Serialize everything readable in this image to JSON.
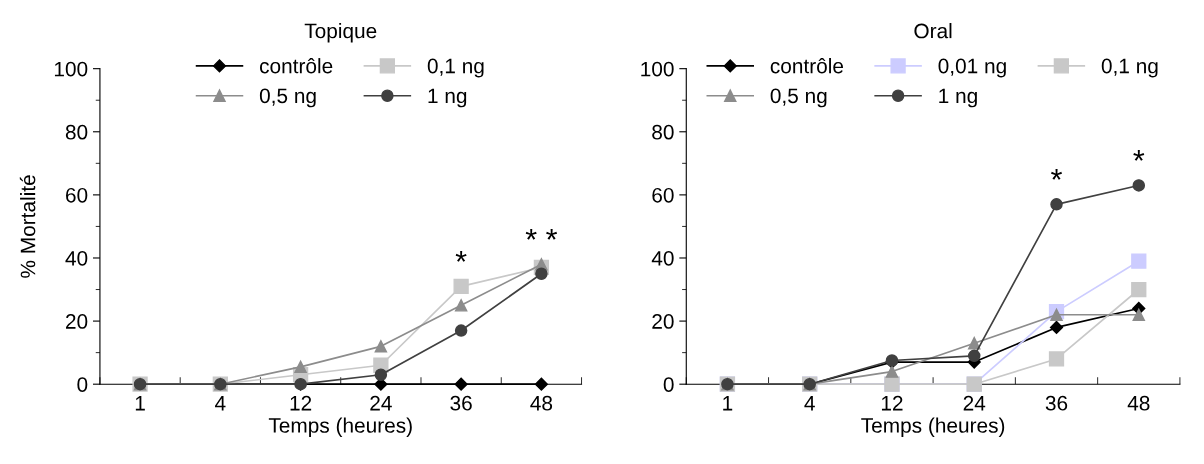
{
  "chart_data": [
    {
      "type": "line",
      "title": "Topique",
      "xlabel": "Temps (heures)",
      "ylabel": "% Mortalité",
      "categories": [
        "1",
        "4",
        "12",
        "24",
        "36",
        "48"
      ],
      "ylim": [
        0,
        100
      ],
      "yticks": [
        0,
        20,
        40,
        60,
        80,
        100
      ],
      "legend": "top",
      "grid": false,
      "line_style": "solid",
      "series": [
        {
          "name": "contrôle",
          "color": "#000000",
          "marker": "diamond",
          "values": [
            0,
            0,
            0,
            0,
            0,
            0
          ]
        },
        {
          "name": "0,1 ng",
          "color": "#c8c8c8",
          "marker": "square",
          "values": [
            0,
            0,
            3,
            6,
            31,
            37
          ]
        },
        {
          "name": "0,5 ng",
          "color": "#8c8c8c",
          "marker": "triangle",
          "values": [
            0,
            0,
            5.5,
            12,
            25,
            38
          ]
        },
        {
          "name": "1 ng",
          "color": "#404040",
          "marker": "circle",
          "values": [
            0,
            0,
            0,
            3,
            17,
            35
          ]
        }
      ],
      "annotations": [
        {
          "text": "*",
          "x": "36",
          "y": 31
        },
        {
          "text": "* *",
          "x": "48",
          "y": 38
        }
      ]
    },
    {
      "type": "line",
      "title": "Oral",
      "xlabel": "Temps (heures)",
      "categories": [
        "1",
        "4",
        "12",
        "24",
        "36",
        "48"
      ],
      "ylim": [
        0,
        100
      ],
      "yticks": [
        0,
        20,
        40,
        60,
        80,
        100
      ],
      "legend": "top",
      "grid": false,
      "line_style": "solid",
      "series": [
        {
          "name": "contrôle",
          "color": "#000000",
          "marker": "diamond",
          "values": [
            0,
            0,
            7,
            7,
            18,
            24
          ]
        },
        {
          "name": "0,01 ng",
          "color": "#ccccff",
          "marker": "square",
          "values": [
            0,
            0,
            0,
            0,
            23,
            39
          ]
        },
        {
          "name": "0,1 ng",
          "color": "#c8c8c8",
          "marker": "square",
          "values": [
            0,
            0,
            0,
            0,
            8,
            30
          ]
        },
        {
          "name": "0,5 ng",
          "color": "#8c8c8c",
          "marker": "triangle",
          "values": [
            0,
            0,
            4,
            13,
            22,
            22
          ]
        },
        {
          "name": "1 ng",
          "color": "#404040",
          "marker": "circle",
          "values": [
            0,
            0,
            7.5,
            9,
            57,
            63
          ]
        }
      ],
      "annotations": [
        {
          "text": "*",
          "x": "36",
          "y": 57
        },
        {
          "text": "*",
          "x": "48",
          "y": 63
        }
      ]
    }
  ]
}
